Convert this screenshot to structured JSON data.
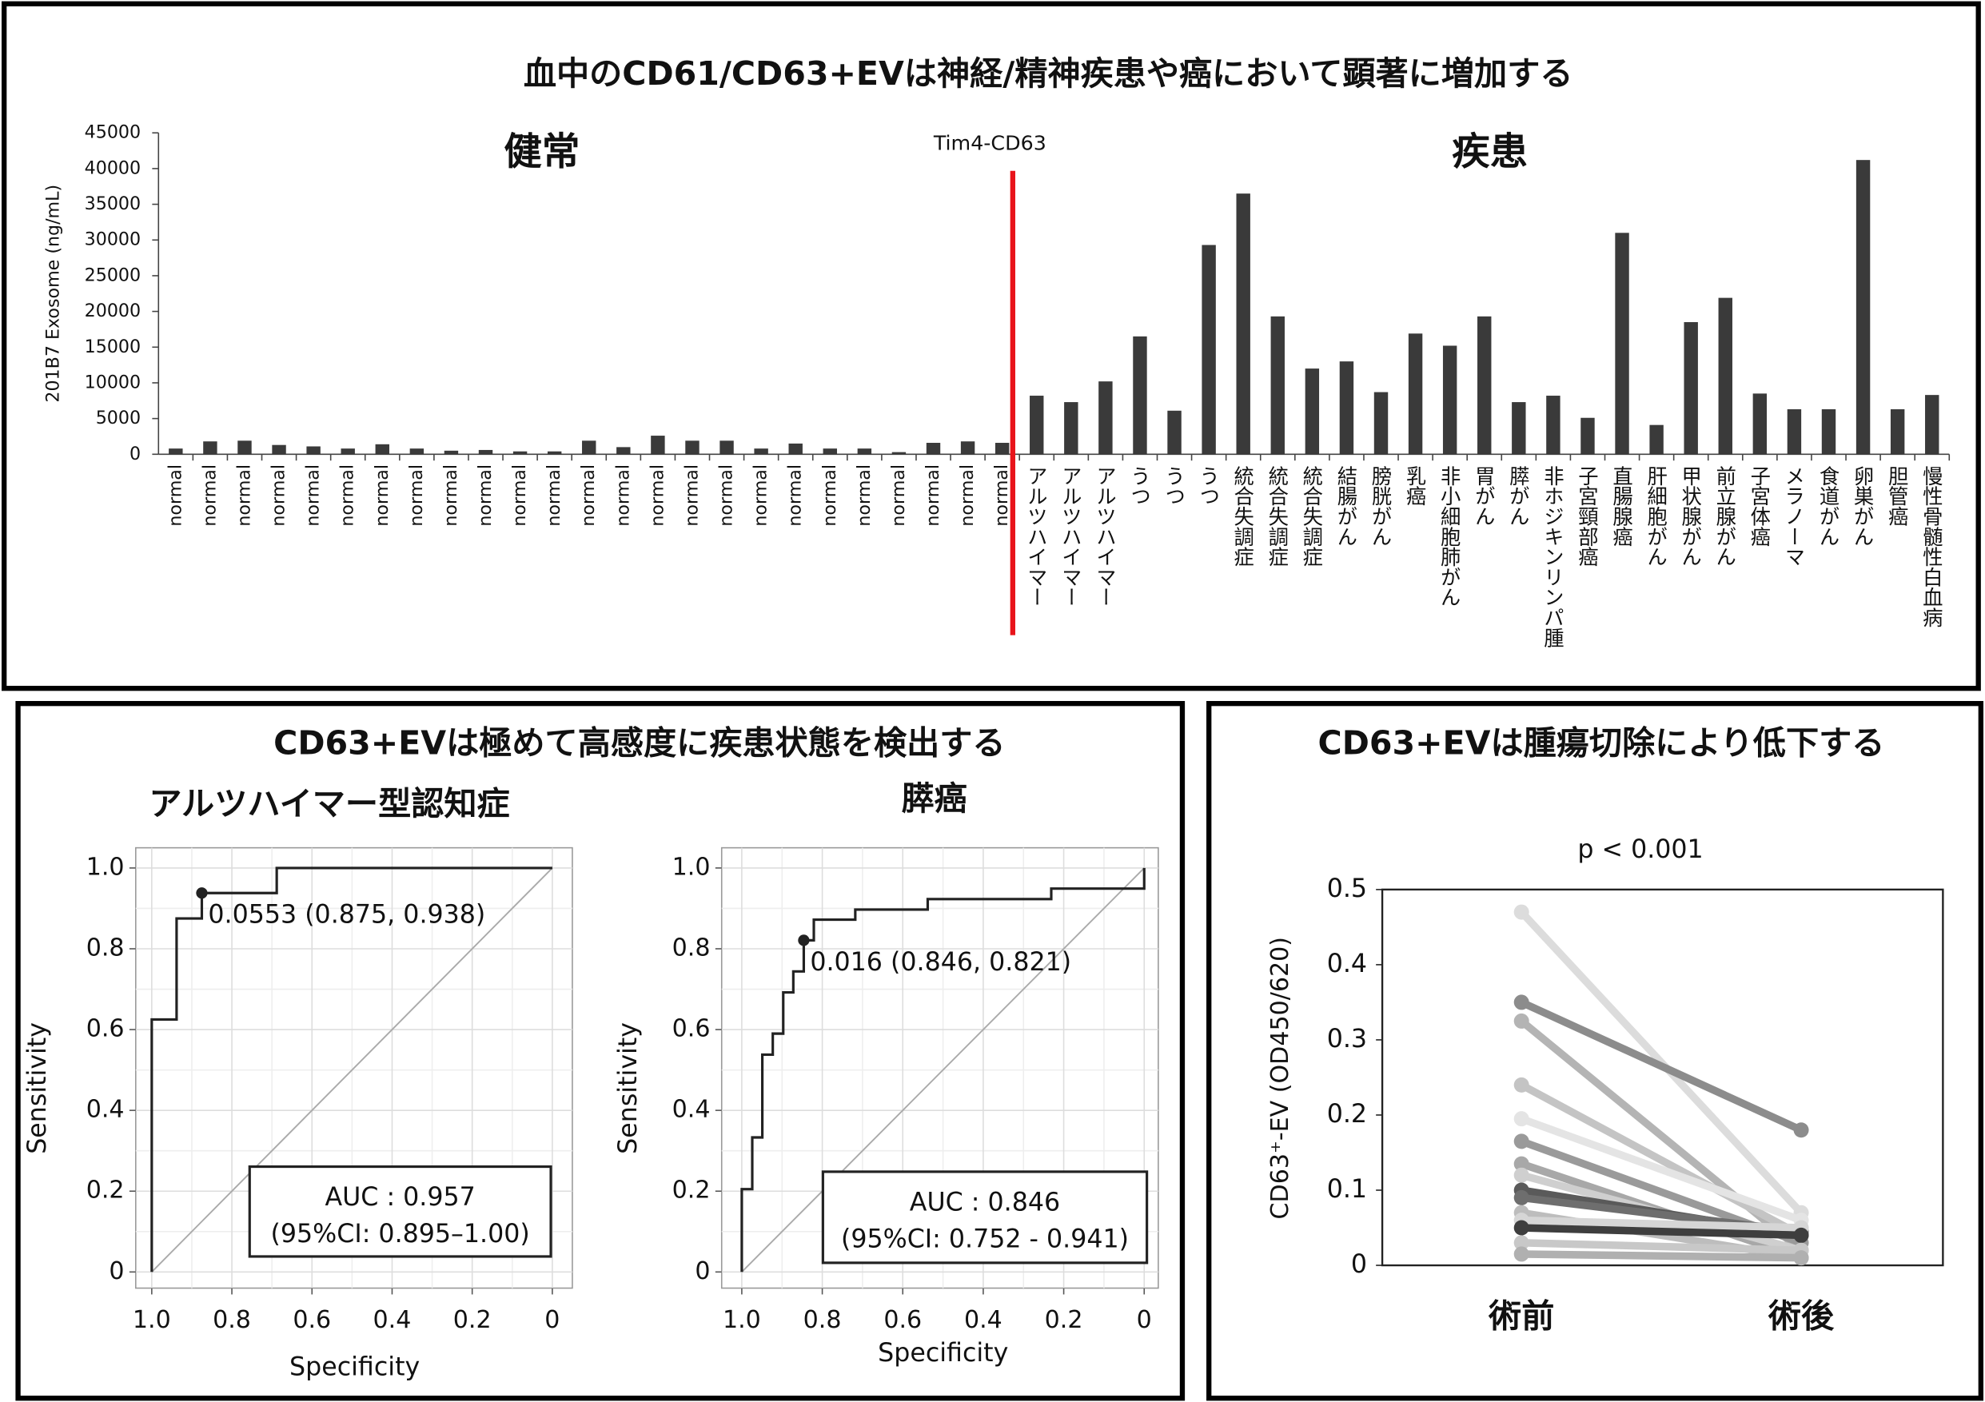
{
  "chart_data": [
    {
      "type": "bar",
      "title": "血中のCD61/CD63+EVは神経/精神疾患や癌において顕著に増加する",
      "y_label": "201B7 Exosome (ng/mL)",
      "annotations": [
        "健常",
        "Tim4-CD63",
        "疾患"
      ],
      "categories": [
        "normal",
        "normal",
        "normal",
        "normal",
        "normal",
        "normal",
        "normal",
        "normal",
        "normal",
        "normal",
        "normal",
        "normal",
        "normal",
        "normal",
        "normal",
        "normal",
        "normal",
        "normal",
        "normal",
        "normal",
        "normal",
        "normal",
        "normal",
        "normal",
        "normal",
        "アルツハイマー",
        "アルツハイマー",
        "アルツハイマー",
        "うつ",
        "うつ",
        "うつ",
        "統合失調症",
        "統合失調症",
        "統合失調症",
        "結腸がん",
        "膀胱がん",
        "乳癌",
        "非小細胞肺がん",
        "胃がん",
        "膵がん",
        "非ホジキンリンパ腫",
        "子宮頸部癌",
        "直腸腺癌",
        "肝細胞がん",
        "甲状腺がん",
        "前立腺がん",
        "子宮体癌",
        "メラノーマ",
        "食道がん",
        "卵巣がん",
        "胆管癌",
        "慢性骨髄性白血病"
      ],
      "values": [
        800,
        1800,
        1900,
        1300,
        1100,
        800,
        1400,
        800,
        500,
        600,
        400,
        400,
        1900,
        1000,
        2600,
        1900,
        1900,
        800,
        1500,
        800,
        800,
        300,
        1600,
        1800,
        1600,
        8200,
        7300,
        10200,
        16500,
        6100,
        29300,
        36500,
        19300,
        12000,
        13000,
        8700,
        16900,
        15200,
        19300,
        7300,
        8200,
        5100,
        31000,
        4100,
        18500,
        21900,
        8500,
        6300,
        6300,
        41200,
        6300,
        8300
      ],
      "color": "#3a3a3a",
      "ylim": [
        0,
        45000
      ],
      "yticks": [
        0,
        5000,
        10000,
        15000,
        20000,
        25000,
        30000,
        35000,
        40000,
        45000
      ]
    },
    {
      "type": "roc",
      "panel_title": "CD63+EVは極めて高感度に疾患状態を検出する",
      "title": "アルツハイマー型認知症",
      "x_label": "Specificity",
      "y_label": "Sensitivity",
      "x": [
        1,
        1,
        0.938,
        0.938,
        0.875,
        0.875,
        0.688,
        0.688,
        0
      ],
      "values": [
        0,
        0.625,
        0.625,
        0.875,
        0.875,
        0.938,
        0.938,
        1,
        1
      ],
      "cutoff": {
        "x": 0.875,
        "y": 0.938,
        "label": "0.0553 (0.875, 0.938)"
      },
      "auc_text": [
        "AUC : 0.957",
        "(95%CI: 0.895–1.00)"
      ],
      "xlim": [
        1.04,
        -0.05
      ],
      "ylim": [
        -0.04,
        1.05
      ],
      "xticks": [
        {
          "value": 1,
          "label": "1.0"
        },
        0.8,
        0.6,
        0.4,
        0.2,
        0
      ],
      "yticks": [
        0,
        0.2,
        0.4,
        0.6,
        0.8,
        {
          "value": 1,
          "label": "1.0"
        }
      ],
      "color": "#222222"
    },
    {
      "type": "roc",
      "title": "膵癌",
      "x_label": "Specificity",
      "y_label": "Sensitivity",
      "x": [
        1,
        1,
        0.974,
        0.974,
        0.949,
        0.949,
        0.923,
        0.923,
        0.897,
        0.897,
        0.872,
        0.872,
        0.846,
        0.846,
        0.821,
        0.821,
        0.718,
        0.718,
        0.538,
        0.538,
        0.231,
        0.231,
        0,
        0
      ],
      "values": [
        0,
        0.205,
        0.205,
        0.333,
        0.333,
        0.538,
        0.538,
        0.59,
        0.59,
        0.692,
        0.692,
        0.744,
        0.744,
        0.821,
        0.821,
        0.872,
        0.872,
        0.897,
        0.897,
        0.923,
        0.923,
        0.949,
        0.949,
        1
      ],
      "cutoff": {
        "x": 0.846,
        "y": 0.821,
        "label": "0.016 (0.846, 0.821)"
      },
      "auc_text": [
        "AUC : 0.846",
        "(95%CI: 0.752 - 0.941)"
      ],
      "xlim": [
        1.05,
        -0.035
      ],
      "ylim": [
        -0.04,
        1.05
      ],
      "xticks": [
        {
          "value": 1,
          "label": "1.0"
        },
        0.8,
        0.6,
        0.4,
        0.2,
        0
      ],
      "yticks": [
        0,
        0.2,
        0.4,
        0.6,
        0.8,
        {
          "value": 1,
          "label": "1.0"
        }
      ],
      "color": "#222222"
    },
    {
      "type": "paired",
      "title": "CD63+EVは腫瘍切除により低下する",
      "annotation": "p < 0.001",
      "y_label": "CD63⁺-EV (OD450/620)",
      "categories": [
        "術前",
        "術後"
      ],
      "ylim": [
        0,
        0.5
      ],
      "yticks": [
        0,
        0.1,
        0.2,
        0.3,
        0.4,
        0.5
      ],
      "series": [
        {
          "color": "#dcdcdc",
          "values": [
            0.47,
            0.07
          ]
        },
        {
          "color": "#8c8c8c",
          "values": [
            0.35,
            0.18
          ]
        },
        {
          "color": "#b4b4b4",
          "values": [
            0.325,
            0.02
          ]
        },
        {
          "color": "#c4c4c4",
          "values": [
            0.24,
            0.04
          ]
        },
        {
          "color": "#e4e4e4",
          "values": [
            0.195,
            0.06
          ]
        },
        {
          "color": "#9a9a9a",
          "values": [
            0.165,
            0.03
          ]
        },
        {
          "color": "#a8a8a8",
          "values": [
            0.135,
            0.01
          ]
        },
        {
          "color": "#cfcfcf",
          "values": [
            0.12,
            0.02
          ]
        },
        {
          "color": "#5a5a5a",
          "values": [
            0.1,
            0.04
          ]
        },
        {
          "color": "#6e6e6e",
          "values": [
            0.09,
            0.045
          ]
        },
        {
          "color": "#bdbdbd",
          "values": [
            0.07,
            0.01
          ]
        },
        {
          "color": "#d6d6d6",
          "values": [
            0.06,
            0.05
          ]
        },
        {
          "color": "#3e3e3e",
          "values": [
            0.05,
            0.04
          ]
        },
        {
          "color": "#c8c8c8",
          "values": [
            0.03,
            0.02
          ]
        },
        {
          "color": "#b0b0b0",
          "values": [
            0.015,
            0.01
          ]
        }
      ]
    }
  ]
}
